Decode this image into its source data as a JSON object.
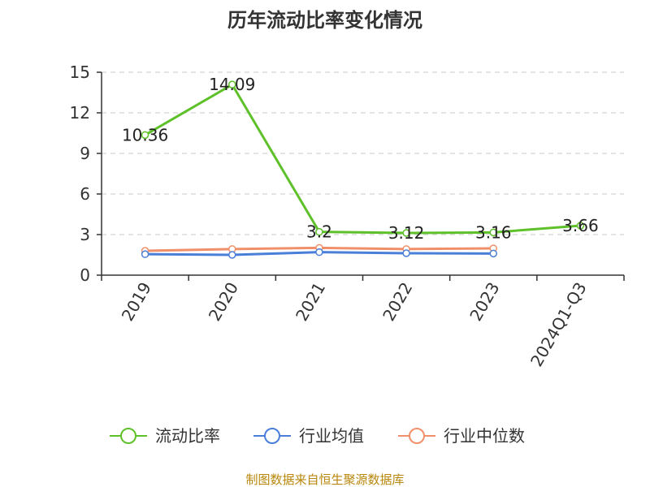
{
  "chart_data": {
    "type": "line",
    "title": "历年流动比率变化情况",
    "categories": [
      "2019",
      "2020",
      "2021",
      "2022",
      "2023",
      "2024Q1-Q3"
    ],
    "ylim": [
      0,
      15
    ],
    "yticks": [
      0,
      3,
      6,
      9,
      12,
      15
    ],
    "grid": true,
    "legend_position": "bottom",
    "series": [
      {
        "name": "流动比率",
        "color": "#5ec12a",
        "values": [
          10.36,
          14.09,
          3.2,
          3.12,
          3.16,
          3.66
        ],
        "labels": [
          "10.36",
          "14.09",
          "3.2",
          "3.12",
          "3.16",
          "3.66"
        ]
      },
      {
        "name": "行业均值",
        "color": "#4a7fd8",
        "values": [
          1.55,
          1.5,
          1.7,
          1.62,
          1.6,
          null
        ]
      },
      {
        "name": "行业中位数",
        "color": "#f0906a",
        "values": [
          1.8,
          1.93,
          2.02,
          1.93,
          1.98,
          null
        ]
      }
    ]
  },
  "source": "制图数据来自恒生聚源数据库"
}
